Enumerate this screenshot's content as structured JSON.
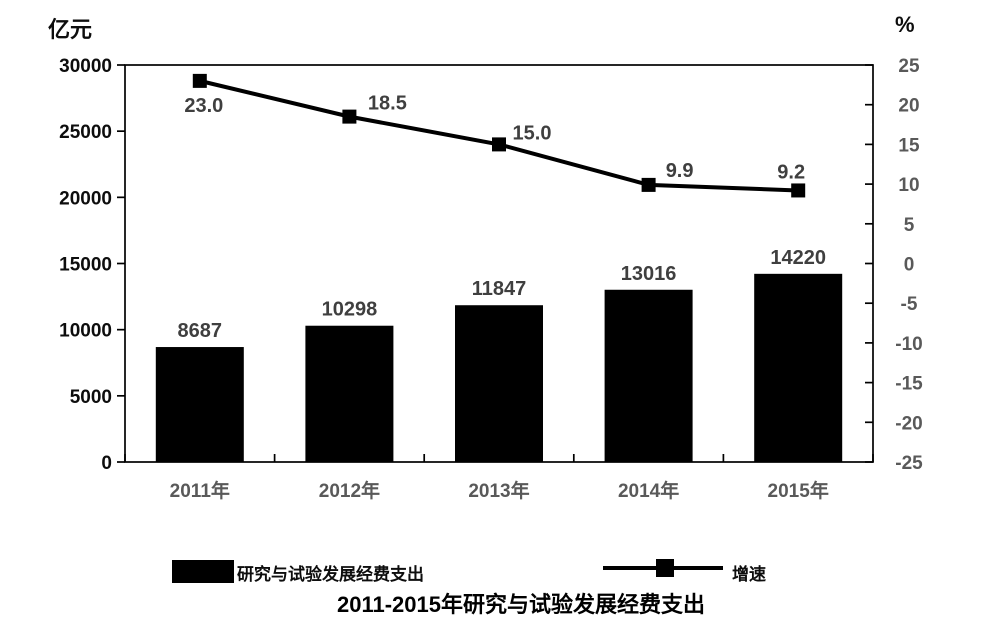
{
  "header": {
    "left_axis_unit": "亿元",
    "right_axis_unit": "%"
  },
  "chart_data": {
    "type": "bar",
    "title": "2011-2015年研究与试验发展经费支出",
    "categories": [
      "2011年",
      "2012年",
      "2013年",
      "2014年",
      "2015年"
    ],
    "series": [
      {
        "name": "研究与试验发展经费支出",
        "type": "bar",
        "axis": "left",
        "values": [
          8687,
          10298,
          11847,
          13016,
          14220
        ]
      },
      {
        "name": "增速",
        "type": "line",
        "axis": "right",
        "values": [
          23.0,
          18.5,
          15.0,
          9.9,
          9.2
        ]
      }
    ],
    "bar_value_labels": [
      "8687",
      "10298",
      "11847",
      "13016",
      "14220"
    ],
    "line_value_labels": [
      "23.0",
      "18.5",
      "15.0",
      "9.9",
      "9.2"
    ],
    "left_axis": {
      "unit": "亿元",
      "min": 0,
      "max": 30000,
      "step": 5000,
      "ticks": [
        30000,
        25000,
        20000,
        15000,
        10000,
        5000,
        0
      ]
    },
    "right_axis": {
      "unit": "%",
      "min": -25,
      "max": 25,
      "step": 5,
      "ticks": [
        25,
        20,
        15,
        10,
        5,
        0,
        -5,
        -10,
        -15,
        -20,
        -25
      ]
    },
    "legend": {
      "position": "bottom",
      "entries": [
        "研究与试验发展经费支出",
        "增速"
      ]
    },
    "grid": "off",
    "colors": {
      "bar": "#000000",
      "line": "#000000",
      "marker": "#000000",
      "axis_line": "#000000",
      "left_tick_label": "#0d0d0d",
      "right_tick_label": "#595959",
      "category_label": "#595959",
      "data_label": "#3f3f3f"
    }
  }
}
